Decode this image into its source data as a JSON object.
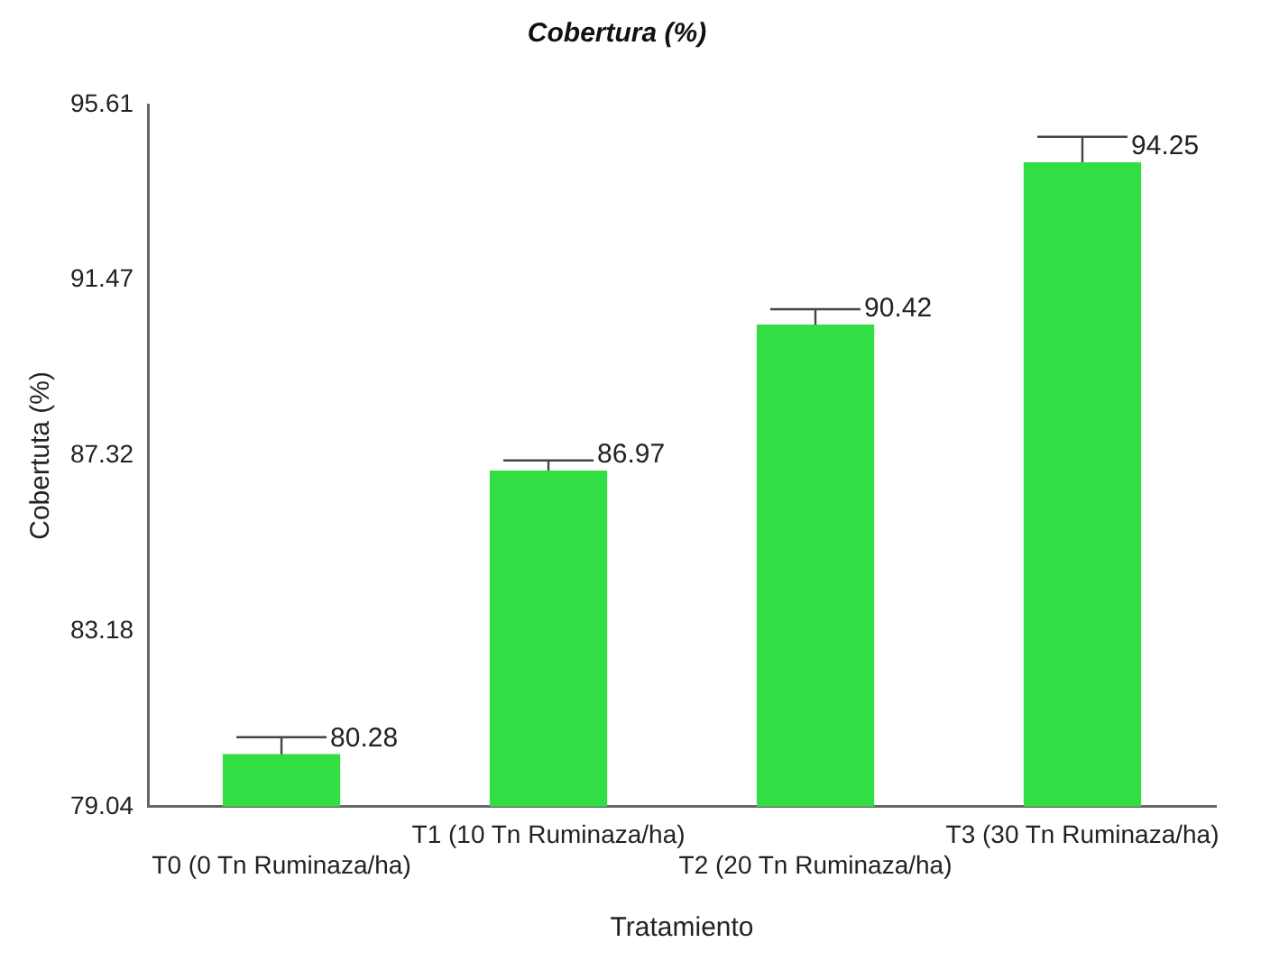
{
  "chart_data": {
    "type": "bar",
    "title": "Cobertura (%)",
    "xlabel": "Tratamiento",
    "ylabel": "Cobertuta (%)",
    "categories": [
      "T0 (0 Tn Ruminaza/ha)",
      "T1 (10 Tn Ruminaza/ha)",
      "T2 (20 Tn Ruminaza/ha)",
      "T3 (30 Tn Ruminaza/ha)"
    ],
    "values": [
      80.28,
      86.97,
      90.42,
      94.25
    ],
    "errors": [
      0.4,
      0.24,
      0.36,
      0.6
    ],
    "color": "#33dd44",
    "ylim": [
      79.04,
      95.61
    ],
    "yticks": [
      79.04,
      83.18,
      87.32,
      91.47,
      95.61
    ],
    "grid": false,
    "legend": false,
    "data_labels": true
  }
}
